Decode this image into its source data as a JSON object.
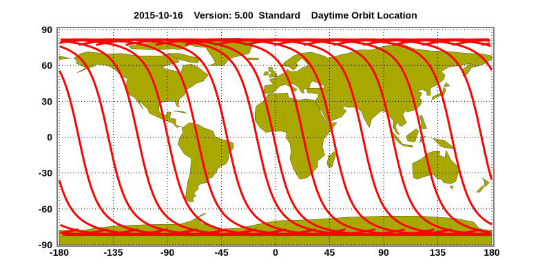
{
  "title": "2015-10-16    Version: 5.00  Standard    Daytime Orbit Location",
  "map": {
    "projection": "equirectangular",
    "land_color": "#a8a800",
    "track_color": "#ff0000",
    "lon_range": [
      -180,
      180
    ],
    "lat_range": [
      -90,
      90
    ],
    "grid": "dotted",
    "x_ticks": [
      "-180",
      "-135",
      "-90",
      "-45",
      "0",
      "45",
      "90",
      "135",
      "180"
    ],
    "y_ticks": [
      "90",
      "60",
      "30",
      "0",
      "-30",
      "-60",
      "-90"
    ],
    "orbit_tracks": {
      "pass": "daytime ascending",
      "equator_crossing_lons": [
        -1.4,
        23.3,
        48.0,
        72.7,
        97.4,
        122.1,
        146.8,
        171.5,
        -163.8,
        -139.1,
        -114.4,
        -89.7,
        -65.0,
        -40.3,
        -15.6
      ]
    }
  }
}
